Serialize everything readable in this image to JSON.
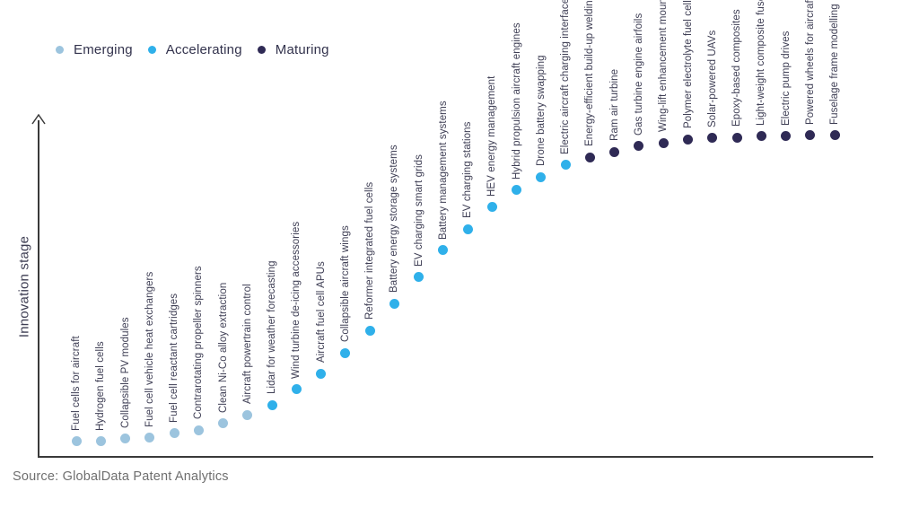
{
  "legend": {
    "items": [
      {
        "label": "Emerging",
        "key": "emerging"
      },
      {
        "label": "Accelerating",
        "key": "accelerating"
      },
      {
        "label": "Maturing",
        "key": "maturing"
      }
    ]
  },
  "colors": {
    "emerging": "#9cc4de",
    "accelerating": "#2fb0ea",
    "maturing": "#2f2a55",
    "axis": "#3a3a3a",
    "point_label_text": "#3e3e54",
    "legend_text": "#33334d",
    "source_text": "#6f6f6f"
  },
  "source": "Source: GlobalData Patent Analytics",
  "chart_data": {
    "type": "scatter",
    "title": "",
    "ylabel": "Innovation stage",
    "xlabel": "",
    "ylim": [
      0,
      100
    ],
    "grid": false,
    "legend_position": "top-left",
    "x_labels_rotation": 90,
    "series_key": "stage",
    "points": [
      {
        "label": "Fuel cells for aircraft",
        "stage": "Emerging",
        "score": 4.5
      },
      {
        "label": "Hydrogen fuel cells",
        "stage": "Emerging",
        "score": 4.5
      },
      {
        "label": "Collapsible PV modules",
        "stage": "Emerging",
        "score": 5.3
      },
      {
        "label": "Fuel cell vehicle heat exchangers",
        "stage": "Emerging",
        "score": 5.6
      },
      {
        "label": "Fuel cell reactant cartridges",
        "stage": "Emerging",
        "score": 6.9
      },
      {
        "label": "Contrarotating propeller spinners",
        "stage": "Emerging",
        "score": 7.9
      },
      {
        "label": "Clean Ni-Co alloy extraction",
        "stage": "Emerging",
        "score": 9.8
      },
      {
        "label": "Aircraft powertrain control",
        "stage": "Emerging",
        "score": 12.4
      },
      {
        "label": "Lidar for weather forecasting",
        "stage": "Accelerating",
        "score": 15.3
      },
      {
        "label": "Wind turbine de-icing accessories",
        "stage": "Accelerating",
        "score": 19.8
      },
      {
        "label": "Aircraft fuel cell APUs",
        "stage": "Accelerating",
        "score": 24.5
      },
      {
        "label": "Collapsible aircraft wings",
        "stage": "Accelerating",
        "score": 30.6
      },
      {
        "label": "Reformer integrated fuel cells",
        "stage": "Accelerating",
        "score": 37.2
      },
      {
        "label": "Battery energy storage systems",
        "stage": "Accelerating",
        "score": 45.1
      },
      {
        "label": "EV charging smart grids",
        "stage": "Accelerating",
        "score": 52.8
      },
      {
        "label": "Battery management systems",
        "stage": "Accelerating",
        "score": 60.7
      },
      {
        "label": "EV charging stations",
        "stage": "Accelerating",
        "score": 67.0
      },
      {
        "label": "HEV energy management",
        "stage": "Accelerating",
        "score": 73.4
      },
      {
        "label": "Hybrid propulsion aircraft engines",
        "stage": "Accelerating",
        "score": 78.4
      },
      {
        "label": "Drone battery swapping",
        "stage": "Accelerating",
        "score": 82.3
      },
      {
        "label": "Electric aircraft charging interfaces",
        "stage": "Accelerating",
        "score": 85.8
      },
      {
        "label": "Energy-efficient build-up welding",
        "stage": "Maturing",
        "score": 88.1
      },
      {
        "label": "Ram air turbine",
        "stage": "Maturing",
        "score": 89.7
      },
      {
        "label": "Gas turbine engine airfoils",
        "stage": "Maturing",
        "score": 91.3
      },
      {
        "label": "Wing-lift enhancement mountings",
        "stage": "Maturing",
        "score": 92.3
      },
      {
        "label": "Polymer electrolyte fuel cells",
        "stage": "Maturing",
        "score": 93.4
      },
      {
        "label": "Solar-powered UAVs",
        "stage": "Maturing",
        "score": 93.7
      },
      {
        "label": "Epoxy-based composites",
        "stage": "Maturing",
        "score": 93.9
      },
      {
        "label": "Light-weight composite fuselage",
        "stage": "Maturing",
        "score": 94.2
      },
      {
        "label": "Electric pump drives",
        "stage": "Maturing",
        "score": 94.2
      },
      {
        "label": "Powered wheels for aircraft landing",
        "stage": "Maturing",
        "score": 94.5
      },
      {
        "label": "Fuselage frame modelling",
        "stage": "Maturing",
        "score": 94.5
      }
    ]
  }
}
